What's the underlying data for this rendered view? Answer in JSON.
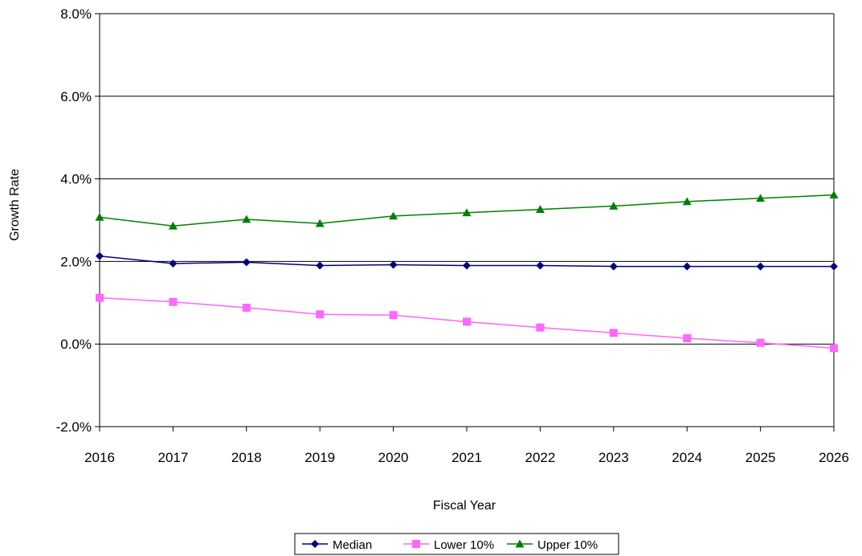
{
  "chart_data": {
    "type": "line",
    "title": "",
    "xlabel": "Fiscal Year",
    "ylabel": "Growth Rate",
    "x": [
      "2016",
      "2017",
      "2018",
      "2019",
      "2020",
      "2021",
      "2022",
      "2023",
      "2024",
      "2025",
      "2026"
    ],
    "ylim": [
      -2.0,
      8.0
    ],
    "yticks": [
      -2.0,
      0.0,
      2.0,
      4.0,
      6.0,
      8.0
    ],
    "ytick_labels": [
      "-2.0%",
      "0.0%",
      "2.0%",
      "4.0%",
      "6.0%",
      "8.0%"
    ],
    "grid": "horizontal",
    "legend_position": "bottom",
    "series": [
      {
        "name": "Median",
        "color": "#000080",
        "marker": "diamond",
        "values": [
          2.13,
          1.95,
          1.98,
          1.9,
          1.92,
          1.9,
          1.9,
          1.88,
          1.88,
          1.88,
          1.88
        ]
      },
      {
        "name": "Lower 10%",
        "color": "#ff66ff",
        "marker": "square",
        "values": [
          1.12,
          1.02,
          0.88,
          0.72,
          0.7,
          0.54,
          0.4,
          0.27,
          0.14,
          0.03,
          -0.1
        ]
      },
      {
        "name": "Upper 10%",
        "color": "#008000",
        "marker": "triangle",
        "values": [
          3.07,
          2.86,
          3.02,
          2.92,
          3.1,
          3.18,
          3.26,
          3.34,
          3.45,
          3.53,
          3.61
        ]
      }
    ]
  }
}
